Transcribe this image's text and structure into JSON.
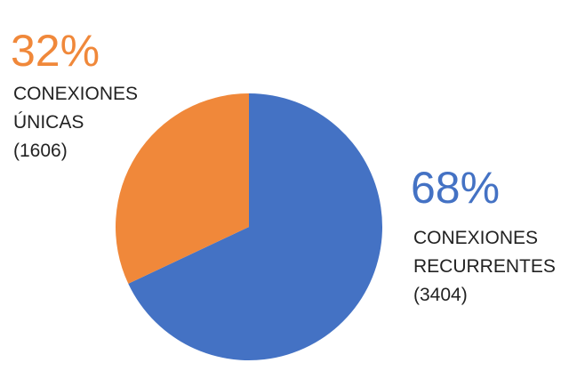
{
  "chart_data": {
    "type": "pie",
    "categories": [
      [
        "CONEXIONES",
        "RECURRENTES"
      ],
      [
        "CONEXIONES",
        "ÚNICAS"
      ]
    ],
    "values": [
      68,
      32
    ],
    "value_labels": [
      "68%",
      "32%"
    ],
    "count_labels": [
      "(3404)",
      "(1606)"
    ],
    "colors": [
      "#4472c4",
      "#f0883a"
    ]
  }
}
